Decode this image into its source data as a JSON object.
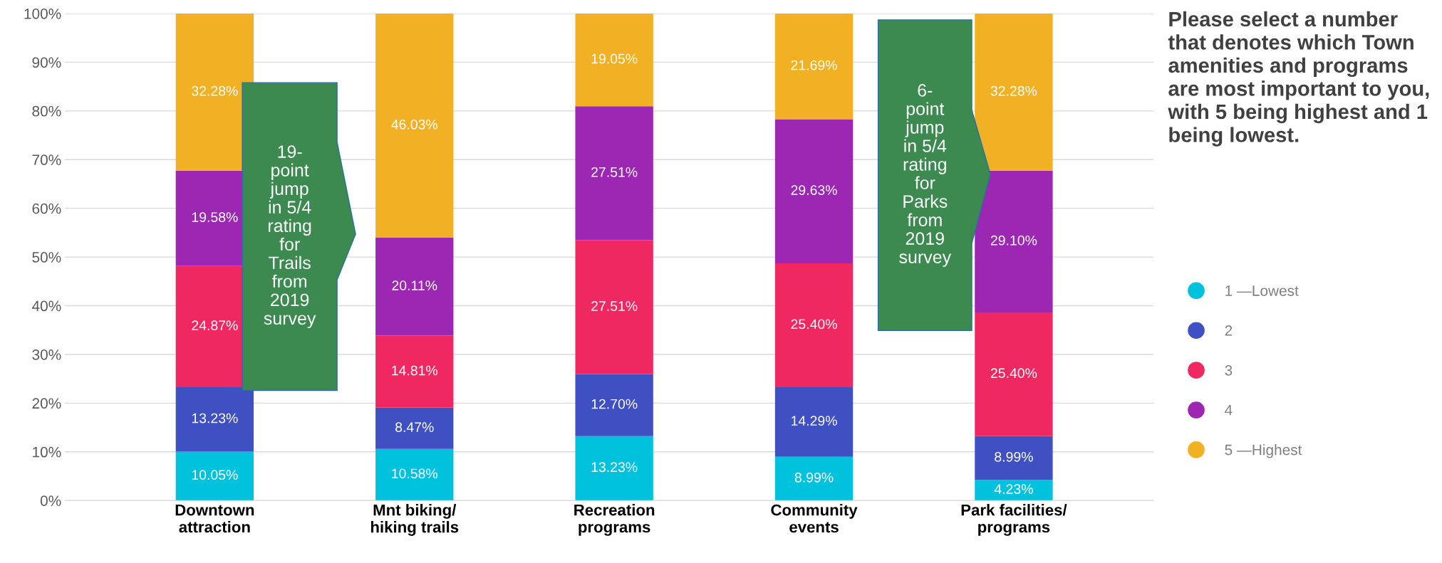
{
  "chart_data": {
    "type": "bar",
    "stacked": true,
    "title": "Please select a number that denotes which Town amenities and programs are most important to you, with 5 being highest and 1 being lowest.",
    "categories": [
      "Downtown\nattraction",
      "Mnt biking/\nhiking trails",
      "Recreation\nprograms",
      "Community\nevents",
      "Park facilities/\nprograms"
    ],
    "series": [
      {
        "name": "1 —Lowest",
        "color": "#00c2dc",
        "values": [
          10.05,
          10.58,
          13.23,
          8.99,
          4.23
        ],
        "value_labels": [
          "10.05%",
          "10.58%",
          "13.23%",
          "8.99%",
          "4.23%"
        ]
      },
      {
        "name": "2",
        "color": "#3f51c2",
        "values": [
          13.23,
          8.47,
          12.7,
          14.29,
          8.99
        ],
        "value_labels": [
          "13.23%",
          "8.47%",
          "12.70%",
          "14.29%",
          "8.99%"
        ]
      },
      {
        "name": "3",
        "color": "#f02862",
        "values": [
          24.87,
          14.81,
          27.51,
          25.4,
          25.4
        ],
        "value_labels": [
          "24.87%",
          "14.81%",
          "27.51%",
          "25.40%",
          "25.40%"
        ]
      },
      {
        "name": "4",
        "color": "#9c27b2",
        "values": [
          19.58,
          20.11,
          27.51,
          29.63,
          29.1
        ],
        "value_labels": [
          "19.58%",
          "20.11%",
          "27.51%",
          "29.63%",
          "29.10%"
        ]
      },
      {
        "name": "5 —Highest",
        "color": "#f2b124",
        "values": [
          32.28,
          46.03,
          19.05,
          21.69,
          32.28
        ],
        "value_labels": [
          "32.28%",
          "46.03%",
          "19.05%",
          "21.69%",
          "32.28%"
        ]
      }
    ],
    "ylim": [
      0,
      100
    ],
    "yticks": [
      {
        "value": 0,
        "label": "0%"
      },
      {
        "value": 10,
        "label": "10%"
      },
      {
        "value": 20,
        "label": "20%"
      },
      {
        "value": 30,
        "label": "30%"
      },
      {
        "value": 40,
        "label": "40%"
      },
      {
        "value": 50,
        "label": "50%"
      },
      {
        "value": 60,
        "label": "60%"
      },
      {
        "value": 70,
        "label": "70%"
      },
      {
        "value": 80,
        "label": "80%"
      },
      {
        "value": 90,
        "label": "90%"
      },
      {
        "value": 100,
        "label": "100%"
      }
    ],
    "grid": "y",
    "legend": "right",
    "annotations": [
      "19-\npoint\njump\nin 5/4\nrating\nfor\nTrails\nfrom\n2019\nsurvey",
      "6-\npoint\njump\nin 5/4\nrating\nfor\nParks\nfrom\n2019\nsurvey"
    ]
  }
}
